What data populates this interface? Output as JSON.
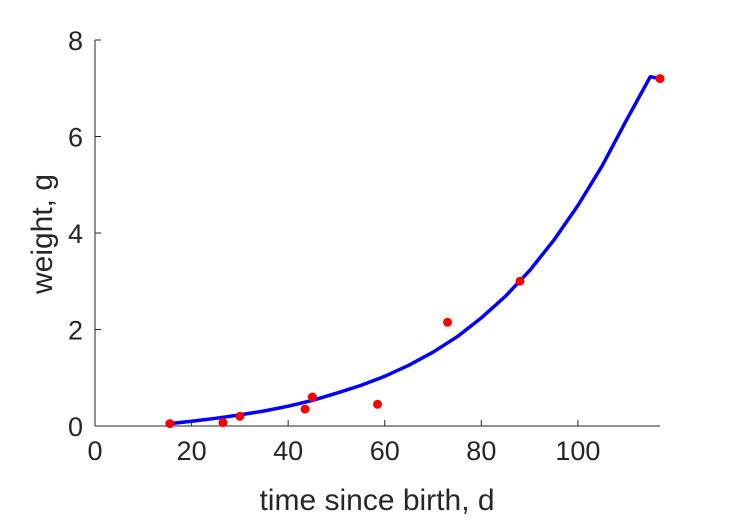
{
  "chart_data": {
    "type": "scatter",
    "xlabel": "time since birth, d",
    "ylabel": "weight, g",
    "xlim": [
      0,
      117
    ],
    "ylim": [
      0,
      8
    ],
    "xticks": [
      0,
      20,
      40,
      60,
      80,
      100
    ],
    "yticks": [
      0,
      2,
      4,
      6,
      8
    ],
    "grid": false,
    "series": [
      {
        "kind": "points",
        "color": "#ff0000",
        "x": [
          15.5,
          26.5,
          30,
          43.5,
          45,
          58.5,
          73,
          88,
          117
        ],
        "y": [
          0.05,
          0.07,
          0.2,
          0.35,
          0.6,
          0.45,
          2.15,
          3.0,
          7.2
        ]
      },
      {
        "kind": "fitted-curve",
        "color": "#0000ff",
        "x": [
          15.5,
          20,
          25,
          30,
          35,
          40,
          45,
          50,
          55,
          60,
          65,
          70,
          75,
          80,
          85,
          90,
          95,
          100,
          105,
          110,
          115,
          117
        ],
        "y": [
          0.05,
          0.1,
          0.16,
          0.23,
          0.31,
          0.41,
          0.53,
          0.68,
          0.84,
          1.03,
          1.26,
          1.53,
          1.85,
          2.24,
          2.69,
          3.22,
          3.85,
          4.57,
          5.39,
          6.33,
          7.24,
          7.2
        ]
      }
    ]
  }
}
